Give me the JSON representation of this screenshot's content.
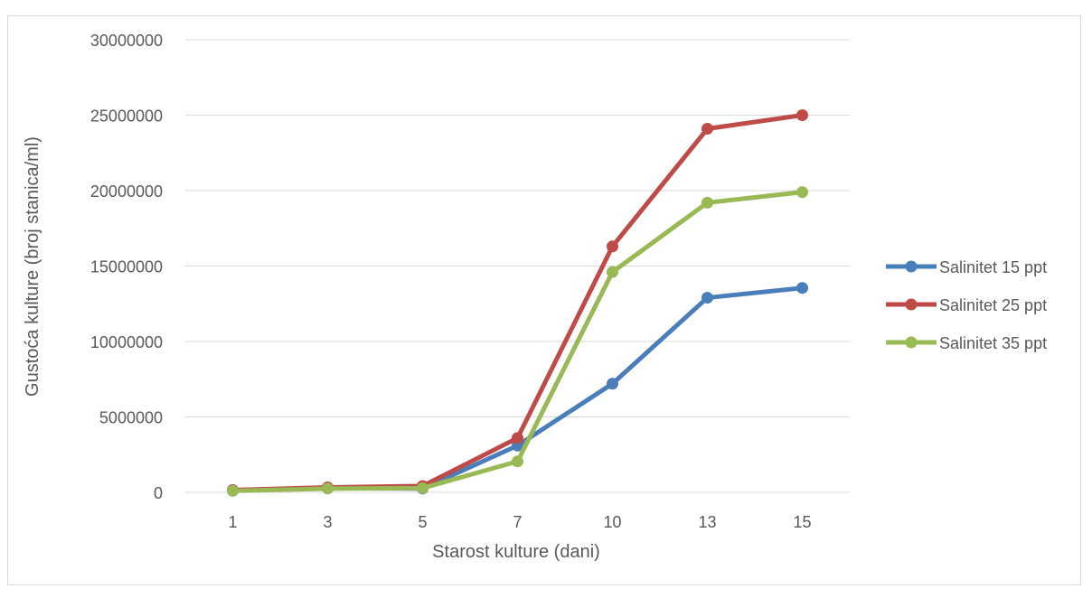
{
  "chart_data": {
    "type": "line",
    "title": "",
    "xlabel": "Starost kulture (dani)",
    "ylabel": "Gustoća kulture (broj stanica/ml)",
    "categories": [
      "1",
      "3",
      "5",
      "7",
      "10",
      "13",
      "15"
    ],
    "ylim": [
      0,
      30000000
    ],
    "yticks": [
      "0",
      "5000000",
      "10000000",
      "15000000",
      "20000000",
      "25000000",
      "30000000"
    ],
    "ytick_values": [
      0,
      5000000,
      10000000,
      15000000,
      20000000,
      25000000,
      30000000
    ],
    "grid": "horizontal",
    "legend_position": "right",
    "series": [
      {
        "name": "Salinitet 15 ppt",
        "color": "#4a7ebb",
        "values": [
          150000,
          280000,
          250000,
          3100000,
          7200000,
          12900000,
          13550000
        ]
      },
      {
        "name": "Salinitet 25 ppt",
        "color": "#be4b48",
        "values": [
          150000,
          330000,
          420000,
          3600000,
          16300000,
          24100000,
          25000000
        ]
      },
      {
        "name": "Salinitet 35 ppt",
        "color": "#98b954",
        "values": [
          100000,
          250000,
          280000,
          2050000,
          14600000,
          19200000,
          19900000
        ]
      }
    ]
  }
}
